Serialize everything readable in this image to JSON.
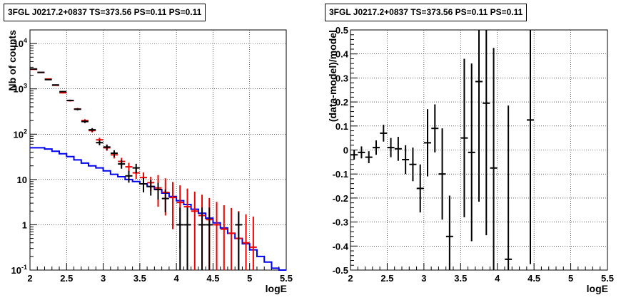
{
  "chart_data": [
    {
      "type": "histogram",
      "title": "3FGL J0217.2+0837 TS=373.56 PS=0.11 PS=0.11",
      "xlabel": "logE",
      "ylabel": "Nb of counts",
      "xlim": [
        2,
        5.5
      ],
      "ylim": [
        0.1,
        20000
      ],
      "yscale": "log",
      "grid": true,
      "x_ticks": [
        "2",
        "2.5",
        "3",
        "3.5",
        "4",
        "4.5",
        "5",
        "5.5"
      ],
      "y_ticks": [
        {
          "value": 0.1,
          "label": "10",
          "exp": "-1"
        },
        {
          "value": 1,
          "label": "1",
          "exp": ""
        },
        {
          "value": 10,
          "label": "10",
          "exp": ""
        },
        {
          "value": 100,
          "label": "10",
          "exp": "2"
        },
        {
          "value": 1000,
          "label": "10",
          "exp": "3"
        },
        {
          "value": 10000,
          "label": "10",
          "exp": "4"
        }
      ],
      "bin_edges": [
        2.0,
        2.1,
        2.2,
        2.3,
        2.4,
        2.5,
        2.6,
        2.7,
        2.8,
        2.9,
        3.0,
        3.1,
        3.2,
        3.3,
        3.4,
        3.5,
        3.6,
        3.7,
        3.8,
        3.9,
        4.0,
        4.1,
        4.2,
        4.3,
        4.4,
        4.5,
        4.6,
        4.7,
        4.8,
        4.9,
        5.0,
        5.1,
        5.2,
        5.3,
        5.4,
        5.5
      ],
      "series": [
        {
          "style": "step",
          "color": "#0000ee",
          "values": [
            50,
            50,
            47,
            42,
            37,
            32,
            27,
            23,
            20,
            18,
            15.5,
            13,
            11.5,
            10,
            9,
            8,
            7,
            6,
            5,
            4.2,
            3.4,
            2.8,
            2.2,
            1.8,
            1.4,
            1.1,
            0.85,
            0.65,
            0.5,
            0.38,
            0.28,
            0.2,
            0.15,
            0.11,
            0.1
          ]
        },
        {
          "style": "errorbar",
          "color": "#ee0000",
          "x": [
            2.05,
            2.15,
            2.25,
            2.35,
            2.45,
            2.55,
            2.65,
            2.75,
            2.85,
            2.95,
            3.05,
            3.15,
            3.25,
            3.35,
            3.45,
            3.55,
            3.65,
            3.75,
            3.85,
            3.95,
            4.05,
            4.15,
            4.25,
            4.35,
            4.45,
            4.55,
            4.65,
            4.75,
            4.85,
            4.95,
            5.05
          ],
          "y": [
            2700,
            2300,
            1650,
            1200,
            820,
            550,
            360,
            200,
            120,
            75,
            50,
            35,
            25,
            19,
            14,
            11,
            8.5,
            6.5,
            5.2,
            4,
            3.1,
            2.5,
            2,
            1.6,
            1.3,
            1,
            0.8,
            0.65,
            0.5,
            0.4,
            0.32
          ],
          "err_low": [
            50,
            48,
            40,
            35,
            28,
            23,
            19,
            14,
            11,
            8.5,
            7,
            5.9,
            5,
            4.3,
            3.7,
            3.3,
            2.9,
            4,
            3.6,
            3.2,
            2.8,
            2.4,
            2,
            1.6,
            1.3,
            1,
            0.8,
            0.65,
            0.5,
            0.4,
            0.32
          ],
          "err_high": [
            50,
            48,
            40,
            35,
            28,
            23,
            19,
            14,
            11,
            8.5,
            7,
            5.9,
            5,
            4.3,
            3.7,
            3.3,
            3,
            6,
            5.4,
            4.8,
            4.3,
            3.8,
            3.4,
            3,
            2.6,
            2.2,
            1.9,
            1.7,
            1.5,
            1.3,
            1.2
          ]
        },
        {
          "style": "errorbar",
          "color": "#000000",
          "x": [
            2.05,
            2.15,
            2.25,
            2.35,
            2.45,
            2.55,
            2.65,
            2.75,
            2.85,
            2.95,
            3.05,
            3.15,
            3.25,
            3.35,
            3.45,
            3.55,
            3.65,
            3.75,
            3.85,
            4.05,
            4.15,
            4.35,
            4.45,
            4.85
          ],
          "y": [
            2750,
            2310,
            1600,
            1220,
            870,
            555,
            355,
            190,
            125,
            65,
            52,
            38,
            22,
            12,
            18,
            8,
            7,
            6,
            3.8,
            1,
            1,
            1,
            1,
            1
          ],
          "err_low": [
            50,
            48,
            40,
            35,
            29,
            23,
            19,
            14,
            11,
            8,
            7.2,
            6.2,
            4.7,
            3.5,
            4.2,
            2.8,
            2.6,
            2.4,
            1.9,
            1,
            1,
            1,
            1,
            1
          ],
          "err_high": [
            50,
            48,
            40,
            35,
            29,
            23,
            19,
            14,
            11,
            8,
            7.2,
            6.2,
            4.7,
            3.5,
            4.2,
            2.8,
            2.6,
            2.4,
            2.2,
            1.4,
            1.4,
            1.4,
            1.4,
            0.9
          ]
        }
      ]
    },
    {
      "type": "scatter",
      "title": "3FGL J0217.2+0837 TS=373.56 PS=0.11 PS=0.11",
      "xlabel": "logE",
      "ylabel": "(data-model)/model",
      "xlim": [
        2,
        5.5
      ],
      "ylim": [
        -0.5,
        0.5
      ],
      "grid": true,
      "x_ticks": [
        "2",
        "2.5",
        "3",
        "3.5",
        "4",
        "4.5",
        "5",
        "5.5"
      ],
      "y_ticks": [
        "-0.5",
        "-0.4",
        "-0.3",
        "-0.2",
        "-0.1",
        "0",
        "0.1",
        "0.2",
        "0.3",
        "0.4",
        "0.5"
      ],
      "series": [
        {
          "style": "errorbar",
          "color": "#000000",
          "x": [
            2.05,
            2.15,
            2.25,
            2.35,
            2.45,
            2.55,
            2.65,
            2.75,
            2.85,
            2.95,
            3.05,
            3.15,
            3.25,
            3.35,
            3.55,
            3.65,
            3.75,
            3.85,
            3.95,
            4.15,
            4.45
          ],
          "y": [
            -0.02,
            -0.01,
            -0.03,
            0.01,
            0.07,
            0.01,
            0.005,
            -0.04,
            -0.06,
            -0.16,
            0.03,
            0.09,
            -0.1,
            -0.36,
            0.05,
            -0.01,
            0.285,
            0.195,
            -0.075,
            -0.455,
            0.125
          ],
          "err": [
            0.02,
            0.025,
            0.025,
            0.03,
            0.035,
            0.04,
            0.05,
            0.06,
            0.07,
            0.1,
            0.14,
            0.1,
            0.19,
            0.17,
            0.33,
            0.37,
            0.5,
            0.55,
            0.5,
            0.64,
            0.6
          ]
        }
      ]
    }
  ]
}
